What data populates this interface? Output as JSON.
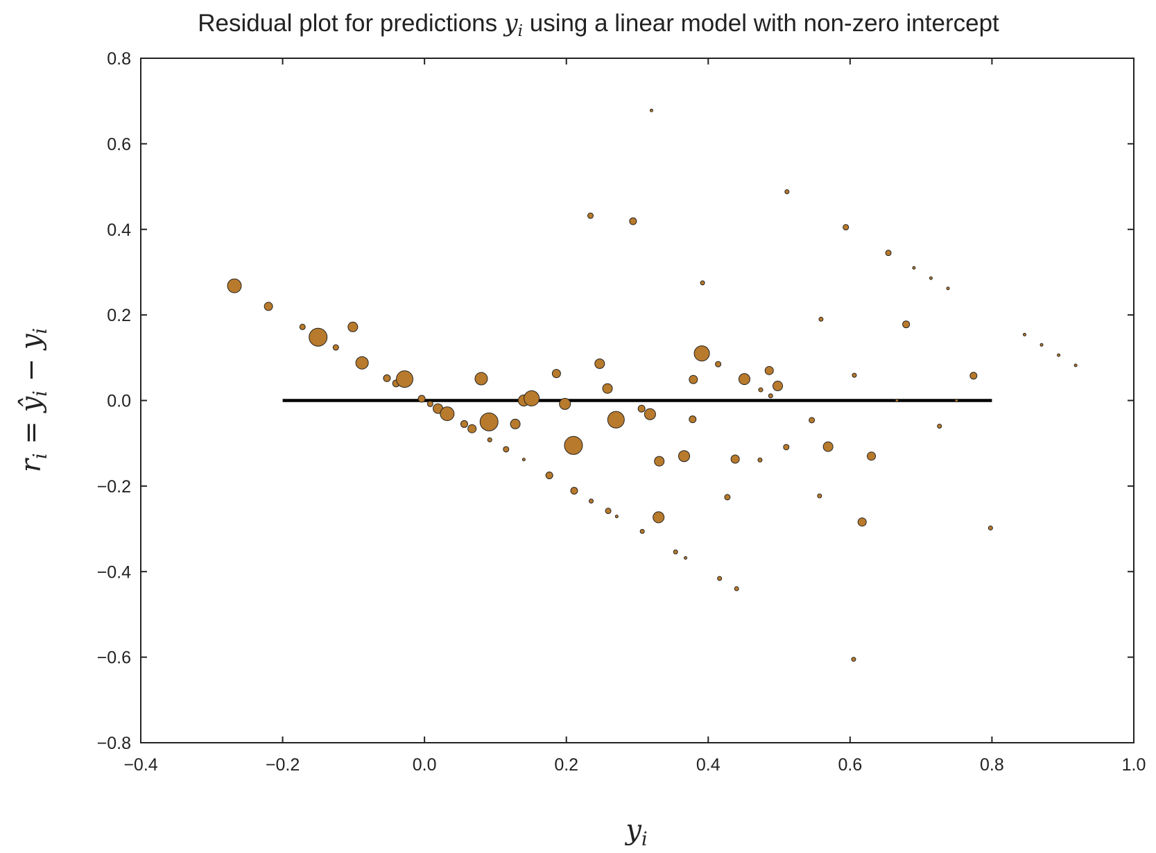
{
  "chart_data": {
    "type": "scatter",
    "title": {
      "prefix": "Residual plot for predictions ",
      "var": "y",
      "sub": "i",
      "suffix": " using a linear model with non-zero intercept"
    },
    "xlabel": {
      "var": "y",
      "sub": "i"
    },
    "ylabel": {
      "r": "r",
      "eq": " = ",
      "yhat": "ŷ",
      "minus": " − ",
      "y": "y",
      "sub": "i"
    },
    "xlim": [
      -0.4,
      1.0
    ],
    "ylim": [
      -0.8,
      0.8
    ],
    "xticks": [
      -0.4,
      -0.2,
      0.0,
      0.2,
      0.4,
      0.6,
      0.8,
      1.0
    ],
    "yticks": [
      -0.8,
      -0.6,
      -0.4,
      -0.2,
      0.0,
      0.2,
      0.4,
      0.6,
      0.8
    ],
    "xtick_labels": [
      "−0.4",
      "−0.2",
      "0.0",
      "0.2",
      "0.4",
      "0.6",
      "0.8",
      "1.0"
    ],
    "ytick_labels": [
      "−0.8",
      "−0.6",
      "−0.4",
      "−0.2",
      "0.0",
      "0.2",
      "0.4",
      "0.6",
      "0.8"
    ],
    "grid": false,
    "marker_color": "#b87a2c",
    "marker_edge": "#222222",
    "reference_line": {
      "x": [
        -0.2,
        0.8
      ],
      "y": 0.0,
      "color": "#000000"
    },
    "note": "point 's' is relative marker size",
    "points": [
      {
        "x": -0.268,
        "y": 0.268,
        "s": 10
      },
      {
        "x": -0.22,
        "y": 0.22,
        "s": 6
      },
      {
        "x": -0.172,
        "y": 0.172,
        "s": 4
      },
      {
        "x": -0.15,
        "y": 0.148,
        "s": 13
      },
      {
        "x": -0.125,
        "y": 0.124,
        "s": 4
      },
      {
        "x": -0.101,
        "y": 0.172,
        "s": 7
      },
      {
        "x": -0.088,
        "y": 0.088,
        "s": 9
      },
      {
        "x": -0.053,
        "y": 0.052,
        "s": 5
      },
      {
        "x": -0.04,
        "y": 0.04,
        "s": 5
      },
      {
        "x": -0.028,
        "y": 0.05,
        "s": 12
      },
      {
        "x": -0.004,
        "y": 0.004,
        "s": 5
      },
      {
        "x": 0.008,
        "y": -0.008,
        "s": 4
      },
      {
        "x": 0.019,
        "y": -0.019,
        "s": 7
      },
      {
        "x": 0.032,
        "y": -0.031,
        "s": 10
      },
      {
        "x": 0.056,
        "y": -0.055,
        "s": 5
      },
      {
        "x": 0.067,
        "y": -0.066,
        "s": 6
      },
      {
        "x": 0.08,
        "y": 0.051,
        "s": 9
      },
      {
        "x": 0.091,
        "y": -0.05,
        "s": 13
      },
      {
        "x": 0.092,
        "y": -0.092,
        "s": 3
      },
      {
        "x": 0.115,
        "y": -0.114,
        "s": 4
      },
      {
        "x": 0.128,
        "y": -0.055,
        "s": 7
      },
      {
        "x": 0.14,
        "y": -0.138,
        "s": 2
      },
      {
        "x": 0.14,
        "y": 0.0,
        "s": 8
      },
      {
        "x": 0.151,
        "y": 0.005,
        "s": 11
      },
      {
        "x": 0.176,
        "y": -0.175,
        "s": 5
      },
      {
        "x": 0.186,
        "y": 0.063,
        "s": 6
      },
      {
        "x": 0.198,
        "y": -0.008,
        "s": 8
      },
      {
        "x": 0.21,
        "y": -0.105,
        "s": 13
      },
      {
        "x": 0.211,
        "y": -0.211,
        "s": 5
      },
      {
        "x": 0.234,
        "y": 0.432,
        "s": 4
      },
      {
        "x": 0.235,
        "y": -0.235,
        "s": 3
      },
      {
        "x": 0.247,
        "y": 0.086,
        "s": 7
      },
      {
        "x": 0.258,
        "y": 0.028,
        "s": 7
      },
      {
        "x": 0.259,
        "y": -0.258,
        "s": 4
      },
      {
        "x": 0.27,
        "y": -0.045,
        "s": 12
      },
      {
        "x": 0.271,
        "y": -0.271,
        "s": 2
      },
      {
        "x": 0.294,
        "y": 0.419,
        "s": 5
      },
      {
        "x": 0.306,
        "y": -0.019,
        "s": 5
      },
      {
        "x": 0.307,
        "y": -0.306,
        "s": 3
      },
      {
        "x": 0.318,
        "y": -0.032,
        "s": 8
      },
      {
        "x": 0.32,
        "y": 0.678,
        "s": 2
      },
      {
        "x": 0.33,
        "y": -0.273,
        "s": 8
      },
      {
        "x": 0.331,
        "y": -0.142,
        "s": 7
      },
      {
        "x": 0.354,
        "y": -0.354,
        "s": 3
      },
      {
        "x": 0.366,
        "y": -0.13,
        "s": 8
      },
      {
        "x": 0.368,
        "y": -0.368,
        "s": 2
      },
      {
        "x": 0.378,
        "y": -0.044,
        "s": 5
      },
      {
        "x": 0.379,
        "y": 0.049,
        "s": 6
      },
      {
        "x": 0.391,
        "y": 0.11,
        "s": 11
      },
      {
        "x": 0.392,
        "y": 0.275,
        "s": 3
      },
      {
        "x": 0.414,
        "y": 0.085,
        "s": 4
      },
      {
        "x": 0.416,
        "y": -0.416,
        "s": 3
      },
      {
        "x": 0.427,
        "y": -0.226,
        "s": 4
      },
      {
        "x": 0.438,
        "y": -0.137,
        "s": 6
      },
      {
        "x": 0.44,
        "y": -0.44,
        "s": 3
      },
      {
        "x": 0.451,
        "y": 0.05,
        "s": 8
      },
      {
        "x": 0.473,
        "y": -0.139,
        "s": 3
      },
      {
        "x": 0.474,
        "y": 0.025,
        "s": 3
      },
      {
        "x": 0.486,
        "y": 0.07,
        "s": 6
      },
      {
        "x": 0.488,
        "y": 0.011,
        "s": 3
      },
      {
        "x": 0.498,
        "y": 0.034,
        "s": 7
      },
      {
        "x": 0.51,
        "y": -0.109,
        "s": 4
      },
      {
        "x": 0.511,
        "y": 0.488,
        "s": 3
      },
      {
        "x": 0.546,
        "y": -0.046,
        "s": 4
      },
      {
        "x": 0.557,
        "y": -0.223,
        "s": 3
      },
      {
        "x": 0.559,
        "y": 0.19,
        "s": 3
      },
      {
        "x": 0.569,
        "y": -0.108,
        "s": 7
      },
      {
        "x": 0.594,
        "y": 0.405,
        "s": 4
      },
      {
        "x": 0.605,
        "y": -0.605,
        "s": 3
      },
      {
        "x": 0.606,
        "y": 0.059,
        "s": 3
      },
      {
        "x": 0.617,
        "y": -0.284,
        "s": 6
      },
      {
        "x": 0.63,
        "y": -0.13,
        "s": 6
      },
      {
        "x": 0.654,
        "y": 0.345,
        "s": 4
      },
      {
        "x": 0.666,
        "y": 0.0,
        "s": 2
      },
      {
        "x": 0.69,
        "y": 0.31,
        "s": 2
      },
      {
        "x": 0.714,
        "y": 0.286,
        "s": 2
      },
      {
        "x": 0.726,
        "y": -0.06,
        "s": 3
      },
      {
        "x": 0.738,
        "y": 0.262,
        "s": 2
      },
      {
        "x": 0.679,
        "y": 0.178,
        "s": 5
      },
      {
        "x": 0.75,
        "y": 0.0,
        "s": 2
      },
      {
        "x": 0.774,
        "y": 0.058,
        "s": 5
      },
      {
        "x": 0.798,
        "y": -0.298,
        "s": 3
      },
      {
        "x": 0.846,
        "y": 0.154,
        "s": 2
      },
      {
        "x": 0.87,
        "y": 0.13,
        "s": 2
      },
      {
        "x": 0.894,
        "y": 0.106,
        "s": 2
      },
      {
        "x": 0.918,
        "y": 0.082,
        "s": 2
      }
    ]
  }
}
